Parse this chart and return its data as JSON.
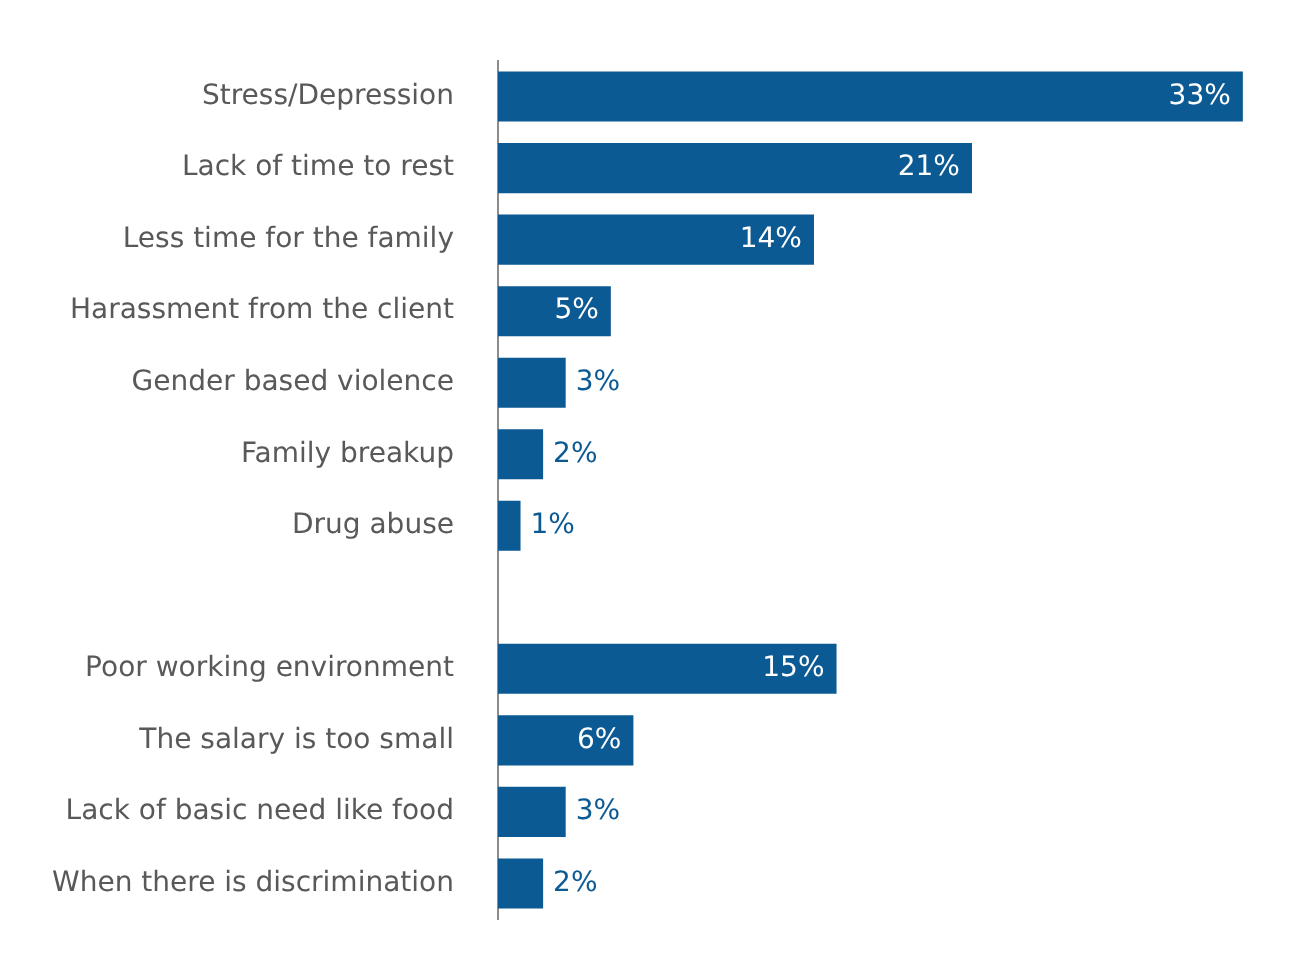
{
  "chart_data": {
    "type": "bar",
    "orientation": "horizontal",
    "categories": [
      "Stress/Depression",
      "Lack of time to rest",
      "Less time for the family",
      "Harassment from the client",
      "Gender based violence",
      "Family breakup",
      "Drug abuse",
      null,
      "Poor working environment",
      "The salary is too small",
      "Lack of basic need like food",
      "When there is discrimination"
    ],
    "values": [
      33,
      21,
      14,
      5,
      3,
      2,
      1,
      null,
      15,
      6,
      3,
      2
    ],
    "value_labels": [
      "33%",
      "21%",
      "14%",
      "5%",
      "3%",
      "2%",
      "1%",
      null,
      "15%",
      "6%",
      "3%",
      "2%"
    ],
    "color": "#0b5a94",
    "legend": false,
    "grid": false
  }
}
